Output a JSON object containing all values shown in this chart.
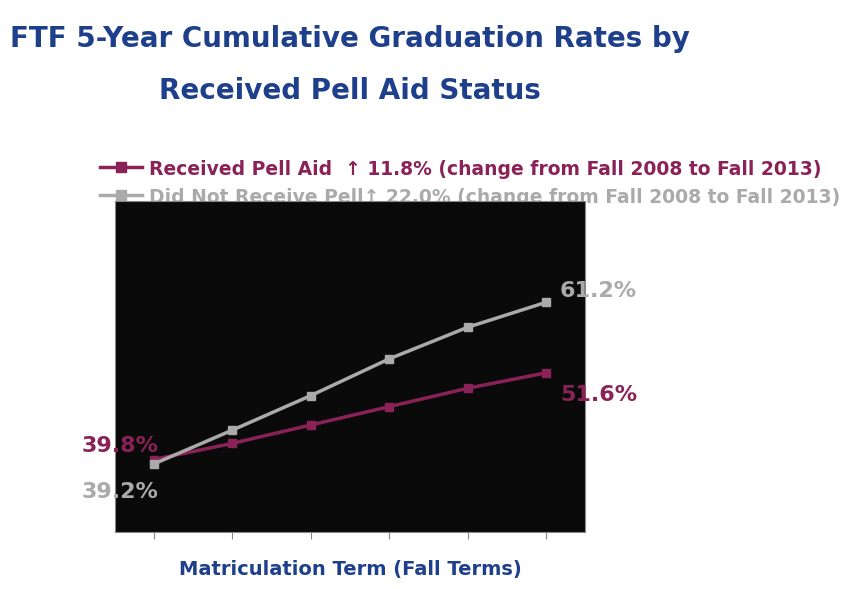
{
  "title_line1": "FTF 5-Year Cumulative Graduation Rates by",
  "title_line2": "Received Pell Aid Status",
  "xlabel": "Matriculation Term (Fall Terms)",
  "fig_bg_color": "#ffffff",
  "plot_bg_color": "#0a0a0a",
  "x_values": [
    0,
    1,
    2,
    3,
    4,
    5
  ],
  "pell_values": [
    39.8,
    42.0,
    44.5,
    47.0,
    49.5,
    51.6
  ],
  "no_pell_values": [
    39.2,
    43.8,
    48.5,
    53.5,
    57.8,
    61.2
  ],
  "pell_color": "#8b2257",
  "no_pell_color": "#aaaaaa",
  "pell_label": "Received Pell Aid",
  "pell_change": "  ↑ 11.8% (change from Fall 2008 to Fall 2013)",
  "no_pell_label": "Did Not Receive Pell",
  "no_pell_change": "↑ 22.0% (change from Fall 2008 to Fall 2013)",
  "title_color": "#1e3f8c",
  "xlabel_color": "#1e3f8c",
  "grid_color": "#555555",
  "annotation_color_pell": "#8b2257",
  "annotation_color_no_pell": "#aaaaaa",
  "ylim": [
    30,
    75
  ],
  "title_fontsize": 20,
  "label_fontsize": 14,
  "annotation_fontsize": 16,
  "legend_fontsize": 13.5
}
